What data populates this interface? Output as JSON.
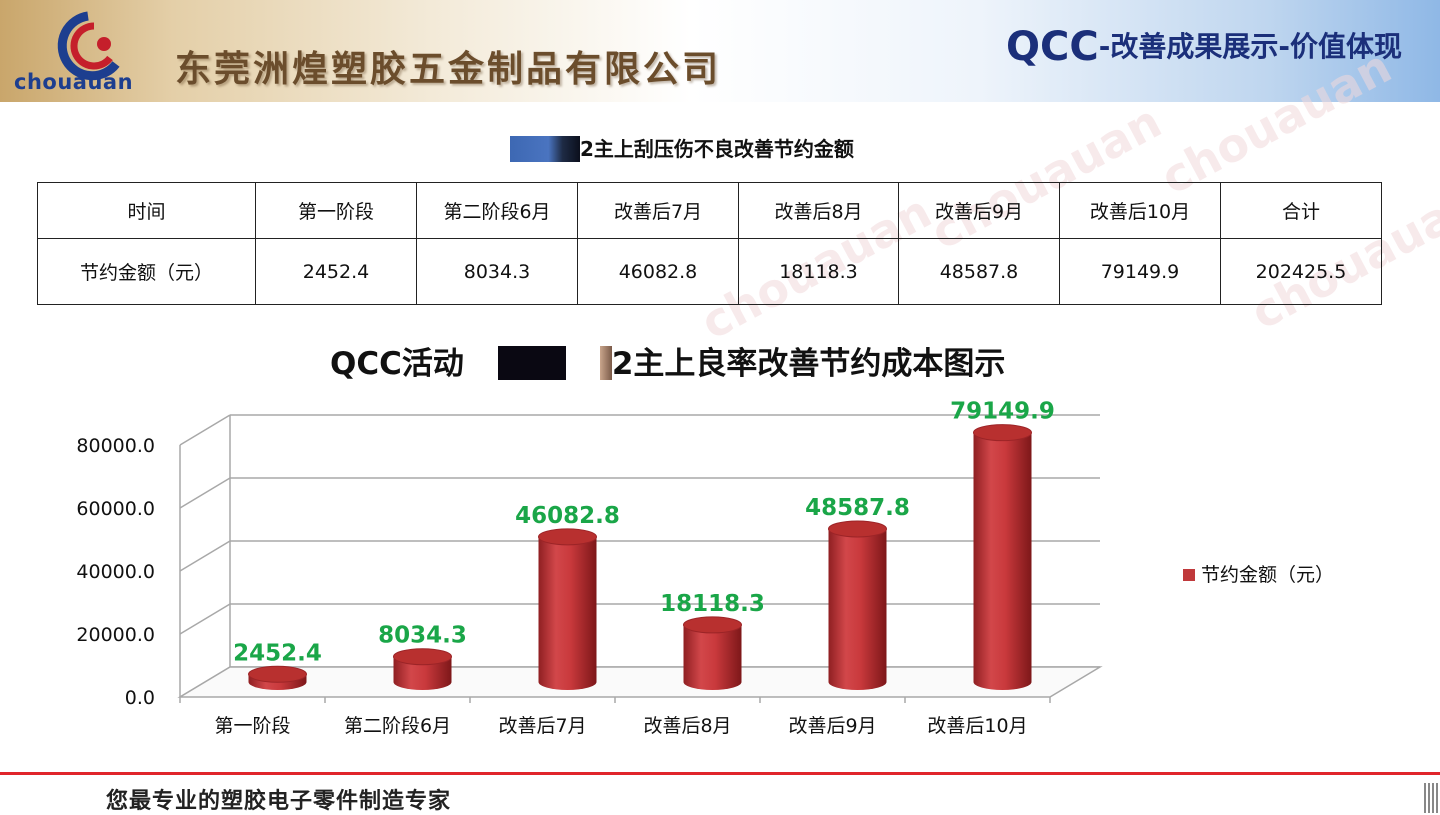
{
  "header": {
    "logo_text": "chouauan",
    "company_name": "东莞洲煌塑胶五金制品有限公司",
    "heading_prefix": "QCC",
    "heading_rest": "-改善成果展示-价值体现"
  },
  "watermark_text": "chouauan",
  "table": {
    "title": "2主上刮压伤不良改善节约金额",
    "headers": [
      "时间",
      "第一阶段",
      "第二阶段6月",
      "改善后7月",
      "改善后8月",
      "改善后9月",
      "改善后10月",
      "合计"
    ],
    "row_label": "节约金额（元）",
    "values": [
      "2452.4",
      "8034.3",
      "46082.8",
      "18118.3",
      "48587.8",
      "79149.9",
      "202425.5"
    ]
  },
  "chart_data": {
    "type": "bar",
    "title_prefix": "QCC活动",
    "title_suffix": "2主上良率改善节约成本图示",
    "categories": [
      "第一阶段",
      "第二阶段6月",
      "改善后7月",
      "改善后8月",
      "改善后9月",
      "改善后10月"
    ],
    "series": [
      {
        "name": "节约金额（元）",
        "values": [
          2452.4,
          8034.3,
          46082.8,
          18118.3,
          48587.8,
          79149.9
        ]
      }
    ],
    "data_labels": [
      "2452.4",
      "8034.3",
      "46082.8",
      "18118.3",
      "48587.8",
      "79149.9"
    ],
    "y_ticks": [
      "0.0",
      "20000.0",
      "40000.0",
      "60000.0",
      "80000.0"
    ],
    "ylim": [
      0,
      80000
    ],
    "grid": true,
    "legend_position": "right",
    "bar_color": "#c0393b",
    "label_color": "#1aa648"
  },
  "footer": {
    "slogan": "您最专业的塑胶电子零件制造专家"
  }
}
